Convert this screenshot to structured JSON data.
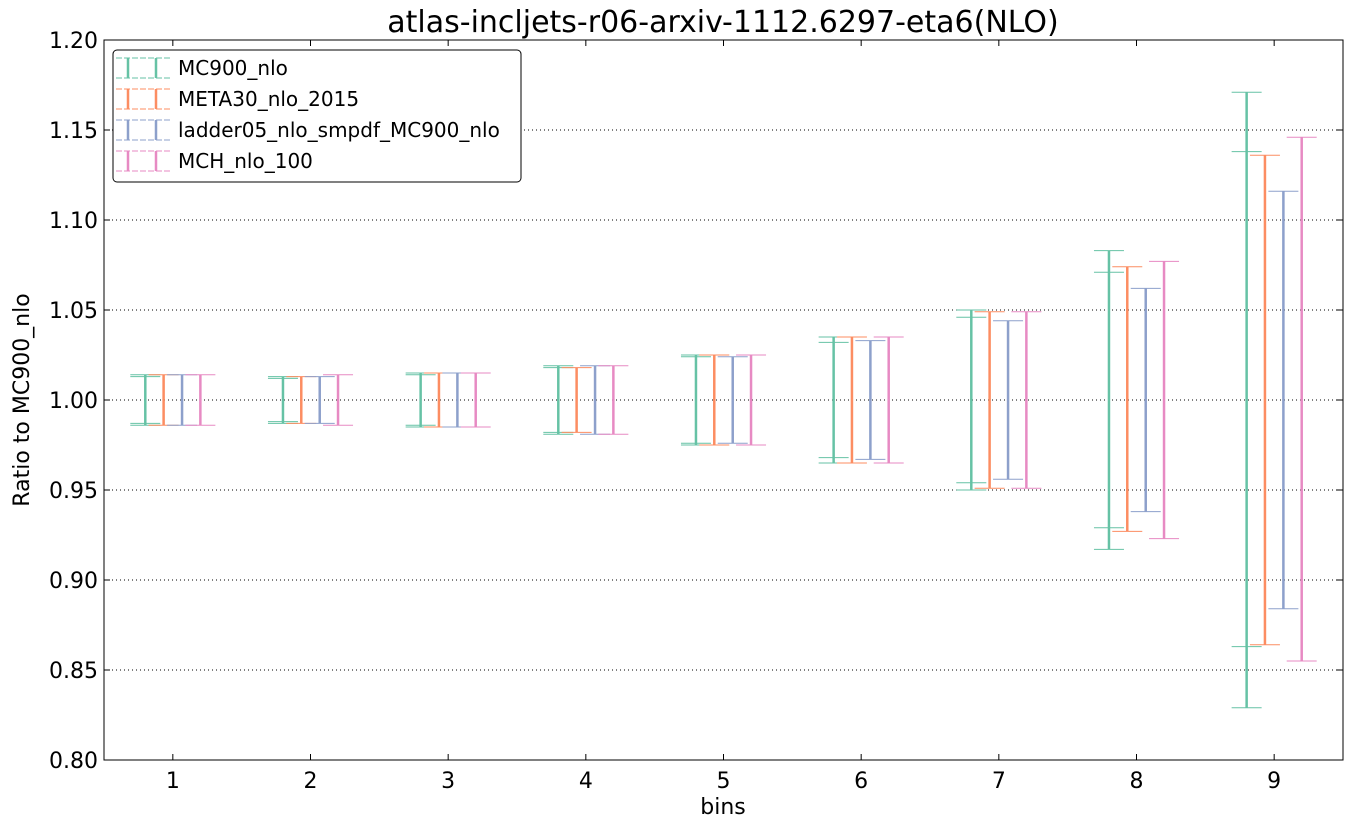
{
  "chart_data": {
    "type": "errorbar",
    "title": "atlas-incljets-r06-arxiv-1112.6297-eta6(NLO)",
    "xlabel": "bins",
    "ylabel": "Ratio to MC900_nlo",
    "xlim": [
      0.5,
      9.5
    ],
    "ylim": [
      0.8,
      1.2
    ],
    "x_ticks": [
      "1",
      "2",
      "3",
      "4",
      "5",
      "6",
      "7",
      "8",
      "9"
    ],
    "y_ticks": [
      "0.80",
      "0.85",
      "0.90",
      "0.95",
      "1.00",
      "1.05",
      "1.10",
      "1.15",
      "1.20"
    ],
    "y_tick_values": [
      0.8,
      0.85,
      0.9,
      0.95,
      1.0,
      1.05,
      1.1,
      1.15,
      1.2
    ],
    "grid": "horizontal dotted",
    "legend_position": "top-left",
    "bins": [
      1,
      2,
      3,
      4,
      5,
      6,
      7,
      8,
      9
    ],
    "series": [
      {
        "name": "MC900_nlo",
        "color": "#66c2a5",
        "outer": [
          [
            0.986,
            1.014
          ],
          [
            0.987,
            1.013
          ],
          [
            0.985,
            1.015
          ],
          [
            0.981,
            1.019
          ],
          [
            0.975,
            1.025
          ],
          [
            0.965,
            1.035
          ],
          [
            0.95,
            1.05
          ],
          [
            0.917,
            1.083
          ],
          [
            0.829,
            1.171
          ]
        ],
        "inner": [
          [
            0.987,
            1.013
          ],
          [
            0.988,
            1.012
          ],
          [
            0.986,
            1.014
          ],
          [
            0.982,
            1.018
          ],
          [
            0.976,
            1.024
          ],
          [
            0.968,
            1.032
          ],
          [
            0.954,
            1.046
          ],
          [
            0.929,
            1.071
          ],
          [
            0.863,
            1.138
          ]
        ]
      },
      {
        "name": "META30_nlo_2015",
        "color": "#fc8d62",
        "outer": [
          [
            0.986,
            1.014
          ],
          [
            0.987,
            1.013
          ],
          [
            0.985,
            1.015
          ],
          [
            0.982,
            1.018
          ],
          [
            0.975,
            1.025
          ],
          [
            0.965,
            1.035
          ],
          [
            0.951,
            1.049
          ],
          [
            0.927,
            1.074
          ],
          [
            0.864,
            1.136
          ]
        ]
      },
      {
        "name": "ladder05_nlo_smpdf_MC900_nlo",
        "color": "#8da0cb",
        "outer": [
          [
            0.986,
            1.014
          ],
          [
            0.987,
            1.013
          ],
          [
            0.985,
            1.015
          ],
          [
            0.981,
            1.019
          ],
          [
            0.976,
            1.024
          ],
          [
            0.967,
            1.033
          ],
          [
            0.956,
            1.044
          ],
          [
            0.938,
            1.062
          ],
          [
            0.884,
            1.116
          ]
        ]
      },
      {
        "name": "MCH_nlo_100",
        "color": "#e78ac3",
        "outer": [
          [
            0.986,
            1.014
          ],
          [
            0.986,
            1.014
          ],
          [
            0.985,
            1.015
          ],
          [
            0.981,
            1.019
          ],
          [
            0.975,
            1.025
          ],
          [
            0.965,
            1.035
          ],
          [
            0.951,
            1.049
          ],
          [
            0.923,
            1.077
          ],
          [
            0.855,
            1.146
          ]
        ]
      }
    ]
  }
}
